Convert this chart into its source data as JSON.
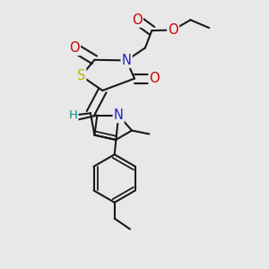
{
  "bg_color": "#e8e8e8",
  "bond_color": "#1a1a1a",
  "bond_width": 1.5,
  "dbo": 0.016,
  "atom_colors": {
    "S": "#b8b800",
    "N": "#2222cc",
    "O": "#cc0000",
    "H": "#008888"
  },
  "fs": 9,
  "figsize": [
    3.0,
    3.0
  ],
  "dpi": 100
}
